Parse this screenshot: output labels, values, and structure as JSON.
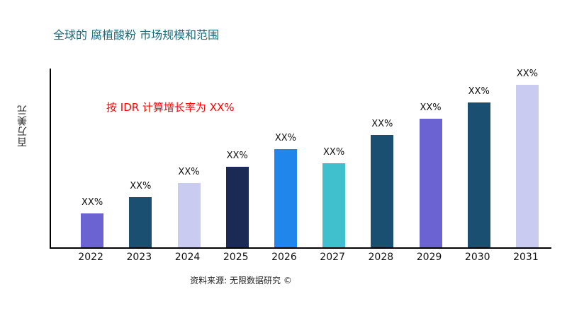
{
  "title": "全球的 腐植酸粉 市场规模和范围",
  "annotation": "按 IDR 计算增长率为 XX%",
  "source": "资料来源: 无限数据研究 ©",
  "colors": {
    "title": "#176B7A",
    "annotation": "#FF0000",
    "axis": "#000000",
    "background": "#FFFFFF"
  },
  "chart_data": {
    "type": "bar",
    "title": "全球的 腐植酸粉 市场规模和范围",
    "xlabel": "",
    "ylabel": "百万美元",
    "categories": [
      "2022",
      "2023",
      "2024",
      "2025",
      "2026",
      "2027",
      "2028",
      "2029",
      "2030",
      "2031"
    ],
    "values": [
      19,
      28,
      36,
      45,
      55,
      47,
      63,
      72,
      81,
      91
    ],
    "bar_labels": [
      "XX%",
      "XX%",
      "XX%",
      "XX%",
      "XX%",
      "XX%",
      "XX%",
      "XX%",
      "XX%",
      "XX%"
    ],
    "bar_colors": [
      "#6C63D2",
      "#1B4F72",
      "#C9CCF0",
      "#1B2A55",
      "#2186EB",
      "#3FC0CC",
      "#1B4F72",
      "#6C63D2",
      "#1B4F72",
      "#C9CCF0"
    ],
    "ylim": [
      0,
      100
    ],
    "grid": false,
    "legend": "none"
  }
}
